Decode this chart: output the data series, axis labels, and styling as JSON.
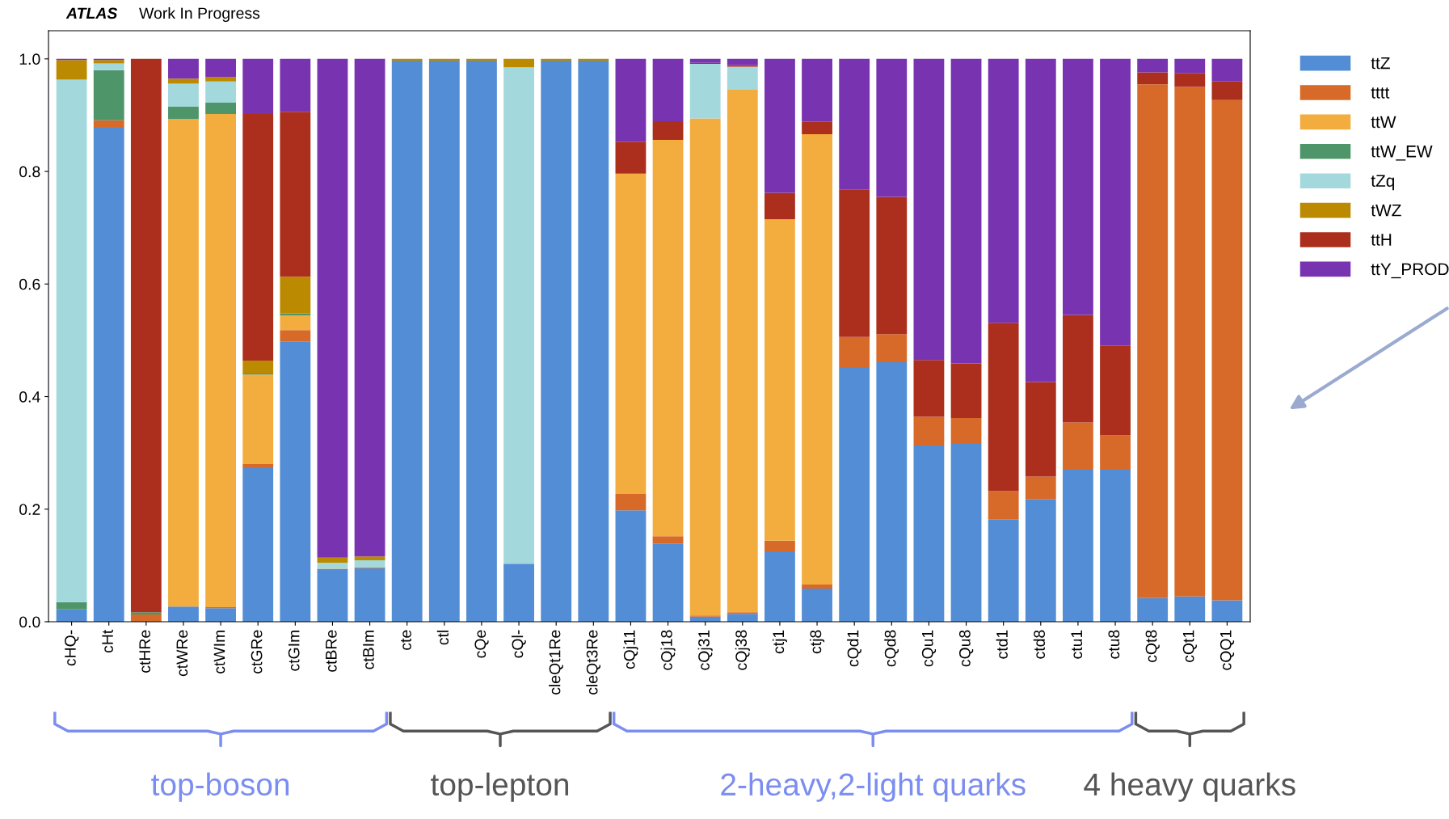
{
  "chart_data": {
    "type": "bar",
    "stacked": true,
    "title": "ATLAS",
    "subtitle": "Work In Progress",
    "categories": [
      "cHQ-",
      "cHt",
      "ctHRe",
      "ctWRe",
      "ctWIm",
      "ctGRe",
      "ctGIm",
      "ctBRe",
      "ctBIm",
      "cte",
      "ctl",
      "cQe",
      "cQl-",
      "cleQt1Re",
      "cleQt3Re",
      "cQj11",
      "cQj18",
      "cQj31",
      "cQj38",
      "ctj1",
      "ctj8",
      "cQd1",
      "cQd8",
      "cQu1",
      "cQu8",
      "ctd1",
      "ctd8",
      "ctu1",
      "ctu8",
      "cQt8",
      "cQt1",
      "cQQ1"
    ],
    "series": [
      {
        "name": "ttZ",
        "color": "#538dd5",
        "values": [
          0.022,
          0.879,
          0,
          0.027,
          0.024,
          0.273,
          0.498,
          0.092,
          0.095,
          0.997,
          0.997,
          0.997,
          0.103,
          0.997,
          0.997,
          0.198,
          0.139,
          0.009,
          0.014,
          0.125,
          0.059,
          0.451,
          0.461,
          0.313,
          0.316,
          0.182,
          0.218,
          0.27,
          0.27,
          0.042,
          0.045,
          0.038
        ]
      },
      {
        "name": "tttt",
        "color": "#d76a29",
        "values": [
          0,
          0.012,
          0.013,
          0,
          0.002,
          0.007,
          0.02,
          0.002,
          0.002,
          0,
          0,
          0,
          0,
          0,
          0,
          0.029,
          0.013,
          0.002,
          0.003,
          0.019,
          0.007,
          0.055,
          0.05,
          0.051,
          0.046,
          0.05,
          0.04,
          0.084,
          0.061,
          0.913,
          0.905,
          0.889
        ]
      },
      {
        "name": "ttW",
        "color": "#f3ad3f",
        "values": [
          0,
          0,
          0,
          0.866,
          0.876,
          0.159,
          0.026,
          0,
          0,
          0,
          0,
          0,
          0,
          0,
          0,
          0.569,
          0.704,
          0.883,
          0.928,
          0.571,
          0.8,
          0,
          0,
          0,
          0,
          0,
          0,
          0,
          0,
          0,
          0,
          0
        ]
      },
      {
        "name": "ttW_EW",
        "color": "#4e956a",
        "values": [
          0.013,
          0.089,
          0.004,
          0.022,
          0.02,
          0.002,
          0.004,
          0,
          0,
          0,
          0,
          0,
          0,
          0,
          0,
          0,
          0,
          0,
          0,
          0,
          0,
          0,
          0,
          0,
          0,
          0,
          0,
          0,
          0,
          0,
          0,
          0
        ]
      },
      {
        "name": "tZq",
        "color": "#a3d9dd",
        "values": [
          0.928,
          0.012,
          0,
          0.041,
          0.038,
          0,
          0,
          0.011,
          0.012,
          0,
          0,
          0,
          0.882,
          0,
          0,
          0,
          0,
          0.097,
          0.041,
          0,
          0,
          0,
          0,
          0,
          0,
          0,
          0,
          0,
          0,
          0,
          0,
          0
        ]
      },
      {
        "name": "tWZ",
        "color": "#bc8a00",
        "values": [
          0.035,
          0.006,
          0,
          0.009,
          0.008,
          0.023,
          0.065,
          0.009,
          0.007,
          0.003,
          0.003,
          0.003,
          0.015,
          0.003,
          0.003,
          0,
          0,
          0,
          0,
          0,
          0,
          0,
          0,
          0,
          0,
          0,
          0,
          0,
          0,
          0,
          0,
          0
        ]
      },
      {
        "name": "ttH",
        "color": "#ac2e1c",
        "values": [
          0,
          0,
          0.983,
          0,
          0,
          0.438,
          0.293,
          0,
          0,
          0,
          0,
          0,
          0,
          0,
          0,
          0.057,
          0.033,
          0.002,
          0.003,
          0.047,
          0.022,
          0.262,
          0.244,
          0.101,
          0.097,
          0.299,
          0.168,
          0.191,
          0.159,
          0.021,
          0.025,
          0.033
        ]
      },
      {
        "name": "ttY_PROD",
        "color": "#7833b0",
        "values": [
          0.002,
          0.002,
          0,
          0.035,
          0.032,
          0.098,
          0.094,
          0.886,
          0.884,
          0,
          0,
          0,
          0,
          0,
          0,
          0.147,
          0.111,
          0.007,
          0.011,
          0.238,
          0.112,
          0.232,
          0.245,
          0.535,
          0.541,
          0.469,
          0.574,
          0.455,
          0.51,
          0.024,
          0.025,
          0.04
        ]
      }
    ],
    "ylim": [
      0,
      1.05
    ],
    "yticks": [
      {
        "value": 0,
        "label": "0.0"
      },
      0.2,
      0.4,
      0.6,
      0.8,
      {
        "value": 1,
        "label": "1.0"
      }
    ],
    "grid": false,
    "legend": "top right",
    "annotations": [
      "top-boson",
      "top-lepton",
      "2-heavy,2-light quarks",
      "4 heavy quarks"
    ]
  }
}
